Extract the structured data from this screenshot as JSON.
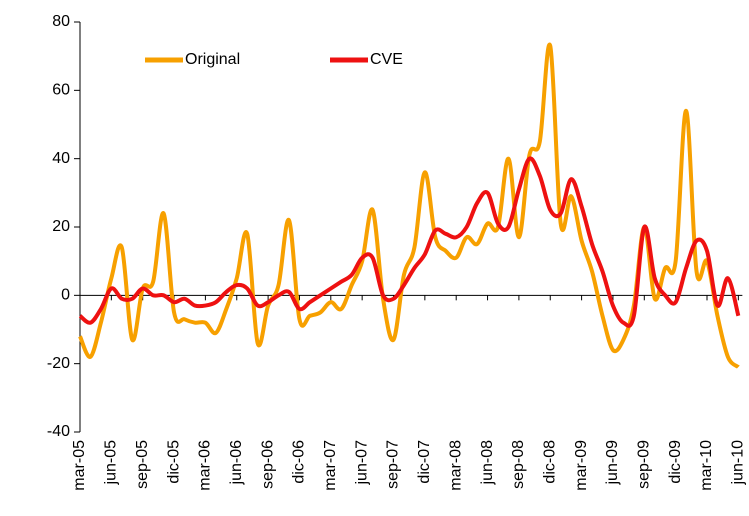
{
  "chart_data": {
    "type": "line",
    "categories": [
      "mar-05",
      null,
      null,
      "jun-05",
      null,
      null,
      "sep-05",
      null,
      null,
      "dic-05",
      null,
      null,
      "mar-06",
      null,
      null,
      "jun-06",
      null,
      null,
      "sep-06",
      null,
      null,
      "dic-06",
      null,
      null,
      "mar-07",
      null,
      null,
      "jun-07",
      null,
      null,
      "sep-07",
      null,
      null,
      "dic-07",
      null,
      null,
      "mar-08",
      null,
      null,
      "jun-08",
      null,
      null,
      "sep-08",
      null,
      null,
      "dic-08",
      null,
      null,
      "mar-09",
      null,
      null,
      "jun-09",
      null,
      null,
      "sep-09",
      null,
      null,
      "dic-09",
      null,
      null,
      "mar-10",
      null,
      null,
      "jun-10"
    ],
    "series": [
      {
        "name": "Original",
        "color": "#f7a000",
        "values": [
          -12,
          -18,
          -8,
          5,
          14,
          -13,
          2,
          4,
          24,
          -5,
          -7,
          -8,
          -8,
          -11,
          -4,
          5,
          18,
          -14,
          -3,
          3,
          22,
          -7,
          -6,
          -5,
          -2,
          -4,
          3,
          10,
          25,
          -1,
          -13,
          6,
          14,
          36,
          17,
          13,
          11,
          17,
          15,
          21,
          20,
          40,
          17,
          41,
          45,
          73,
          21,
          29,
          16,
          7,
          -6,
          -16,
          -13,
          -3,
          20,
          -1,
          8,
          10,
          54,
          7,
          10,
          -6,
          -18,
          -21
        ]
      },
      {
        "name": "CVE",
        "color": "#ee1111",
        "values": [
          -6,
          -8,
          -4,
          2,
          -1,
          -1,
          2,
          0,
          0,
          -2,
          -1,
          -3,
          -3,
          -2,
          1,
          3,
          2,
          -3,
          -2,
          0,
          1,
          -4,
          -2,
          0,
          2,
          4,
          6,
          11,
          11,
          0,
          -1,
          3,
          8,
          12,
          19,
          18,
          17,
          20,
          27,
          30,
          21,
          20,
          31,
          40,
          35,
          25,
          24,
          34,
          26,
          15,
          7,
          -3,
          -8,
          -6,
          20,
          5,
          0,
          -2,
          8,
          16,
          13,
          -3,
          5,
          -6
        ]
      }
    ],
    "ylim": [
      -40,
      80
    ],
    "yticks": [
      -40,
      -20,
      0,
      20,
      40,
      60,
      80
    ],
    "grid": false,
    "legend": "top-left"
  }
}
